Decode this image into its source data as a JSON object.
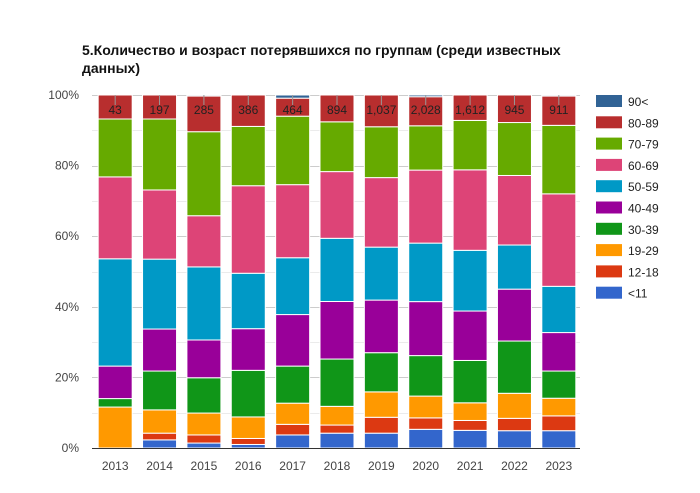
{
  "chart_data": {
    "type": "bar",
    "stacked": true,
    "normalized": true,
    "title": "5.Количество и возраст потерявшихся по группам (среди известных данных)",
    "xlabel": "",
    "ylabel": "",
    "ylim": [
      0,
      100
    ],
    "y_ticks": [
      "0%",
      "20%",
      "40%",
      "60%",
      "80%",
      "100%"
    ],
    "grid": true,
    "legend_position": "right",
    "categories": [
      "2013",
      "2014",
      "2015",
      "2016",
      "2017",
      "2018",
      "2019",
      "2020",
      "2021",
      "2022",
      "2023"
    ],
    "totals_labels": [
      "43",
      "197",
      "285",
      "386",
      "464",
      "894",
      "1,037",
      "2,028",
      "1,612",
      "945",
      "911"
    ],
    "series": [
      {
        "name": "<11",
        "color": "#3366cc",
        "values": [
          0,
          2.3,
          1.4,
          1.0,
          3.7,
          4.2,
          4.2,
          5.4,
          5.0,
          4.9,
          4.9
        ]
      },
      {
        "name": "12-18",
        "color": "#dc3912",
        "values": [
          0,
          1.9,
          2.3,
          1.7,
          3.0,
          2.3,
          4.5,
          3.3,
          2.8,
          3.5,
          4.2
        ]
      },
      {
        "name": "19-29",
        "color": "#ff9900",
        "values": [
          11.6,
          6.6,
          6.2,
          6.1,
          6.0,
          5.3,
          7.2,
          6.3,
          5.0,
          7.1,
          5.0
        ]
      },
      {
        "name": "30-39",
        "color": "#109618",
        "values": [
          2.4,
          11.0,
          10.0,
          13.2,
          10.5,
          13.4,
          11.1,
          11.7,
          12.0,
          14.8,
          7.7
        ]
      },
      {
        "name": "40-49",
        "color": "#990099",
        "values": [
          9.2,
          11.9,
          10.7,
          11.8,
          14.6,
          16.3,
          14.9,
          15.6,
          14.0,
          14.7,
          10.9
        ]
      },
      {
        "name": "50-59",
        "color": "#0099c6",
        "values": [
          30.4,
          19.8,
          20.7,
          15.7,
          16.1,
          17.9,
          15.0,
          16.9,
          17.2,
          12.5,
          13.1
        ]
      },
      {
        "name": "60-69",
        "color": "#dd4477",
        "values": [
          23.2,
          19.6,
          14.5,
          24.8,
          20.7,
          18.9,
          19.7,
          21.1,
          22.8,
          19.7,
          26.2
        ]
      },
      {
        "name": "70-79",
        "color": "#66aa00",
        "values": [
          16.4,
          20.1,
          23.8,
          16.8,
          19.4,
          14.1,
          14.4,
          12.8,
          14.0,
          15.0,
          19.4
        ]
      },
      {
        "name": "80-89",
        "color": "#b82e2e",
        "values": [
          6.8,
          6.8,
          10.1,
          8.9,
          5.1,
          7.6,
          9.0,
          8.4,
          7.2,
          7.8,
          8.3
        ]
      },
      {
        "name": "90<",
        "color": "#316395",
        "values": [
          0,
          0,
          0.3,
          0,
          0.9,
          0,
          0,
          0.5,
          0,
          0,
          0.3
        ]
      }
    ]
  }
}
